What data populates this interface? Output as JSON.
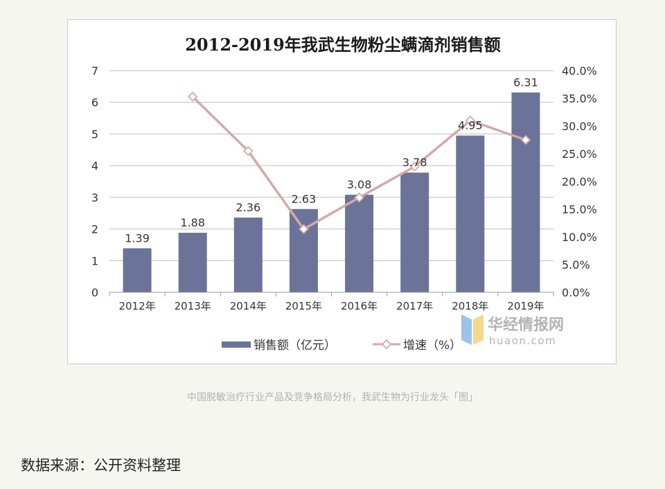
{
  "chart_data": {
    "type": "bar",
    "title": "2012-2019年我武生物粉尘螨滴剂销售额",
    "categories": [
      "2012年",
      "2013年",
      "2014年",
      "2015年",
      "2016年",
      "2017年",
      "2018年",
      "2019年"
    ],
    "series": [
      {
        "name": "销售额（亿元）",
        "type": "bar",
        "axis": "left",
        "values": [
          1.39,
          1.88,
          2.36,
          2.63,
          3.08,
          3.78,
          4.95,
          6.31
        ],
        "data_labels": [
          "1.39",
          "1.88",
          "2.36",
          "2.63",
          "3.08",
          "3.78",
          "4.95",
          "6.31"
        ],
        "color": "#6b7399"
      },
      {
        "name": "增速（%）",
        "type": "line",
        "axis": "right",
        "values": [
          null,
          35.3,
          25.5,
          11.4,
          17.1,
          22.7,
          31.0,
          27.5
        ],
        "color": "#d4a9a9"
      }
    ],
    "ylim": [
      0,
      7
    ],
    "y_ticks": [
      "0",
      "1",
      "2",
      "3",
      "4",
      "5",
      "6",
      "7"
    ],
    "y2lim": [
      0,
      40
    ],
    "y2_ticks": [
      "0.0%",
      "5.0%",
      "10.0%",
      "15.0%",
      "20.0%",
      "25.0%",
      "30.0%",
      "35.0%",
      "40.0%"
    ],
    "grid": true,
    "legend_position": "bottom"
  },
  "watermark": {
    "brand": "华经情报网",
    "domain": "huaon.com"
  },
  "caption": "中国脱敏治疗行业产品及竞争格局分析，我武生物为行业龙头「图」",
  "source": "数据来源：公开资料整理"
}
